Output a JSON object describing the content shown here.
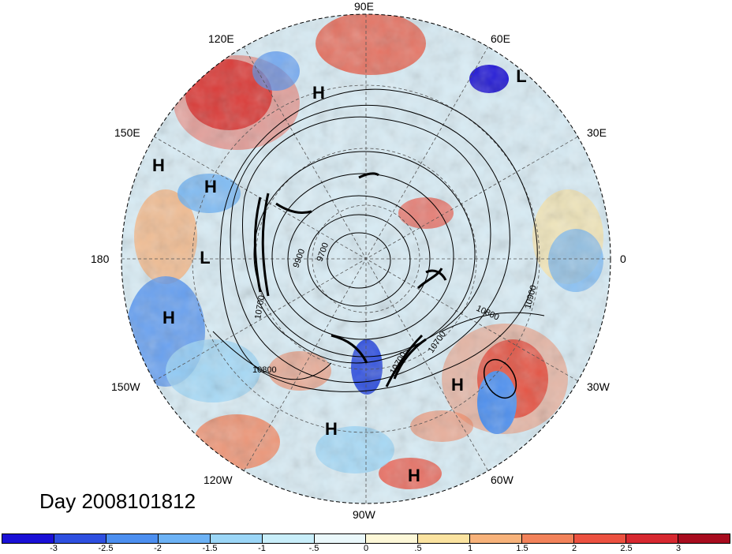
{
  "title_text": "Day 2008101812",
  "lon_labels": {
    "n90e": "90E",
    "n60e": "60E",
    "n120e": "120E",
    "n30e": "30E",
    "n150e": "150E",
    "n180": "180",
    "n0": "0",
    "n150w": "150W",
    "n30w": "30W",
    "n120w": "120W",
    "n60w": "60W",
    "n90w": "90W"
  },
  "pressure_systems": [
    {
      "label": "H"
    },
    {
      "label": "L"
    },
    {
      "label": "H"
    },
    {
      "label": "H"
    },
    {
      "label": "L"
    },
    {
      "label": "H"
    },
    {
      "label": "H"
    },
    {
      "label": "H"
    },
    {
      "label": "H"
    }
  ],
  "contour_labels": [
    "9700",
    "9900",
    "10700",
    "10800",
    "10700",
    "10800",
    "10900",
    "10700"
  ],
  "colorbar": {
    "colors": [
      "#1a10d6",
      "#2e4fe0",
      "#4c8ff0",
      "#6cb2f5",
      "#9bd6f7",
      "#c8eefa",
      "#eaf8fb",
      "#fdf8d8",
      "#fbe3a0",
      "#f7b27a",
      "#f2825a",
      "#ec5140",
      "#d72830",
      "#a80c1e"
    ],
    "ticks": [
      "-3",
      "-2.5",
      "-2",
      "-1.5",
      "-1",
      "-.5",
      "0",
      ".5",
      "1",
      "1.5",
      "2",
      "2.5",
      "3"
    ]
  }
}
